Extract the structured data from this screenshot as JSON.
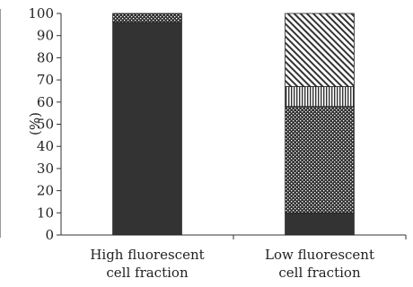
{
  "chart_data": {
    "type": "bar",
    "stacked": true,
    "categories": [
      [
        "High fluorescent",
        "cell fraction"
      ],
      [
        "Low fluorescent",
        "cell fraction"
      ]
    ],
    "series": [
      {
        "values": [
          96,
          10
        ],
        "color": "#333333",
        "pattern": "solid"
      },
      {
        "values": [
          4,
          48
        ],
        "color": "#333333",
        "pattern": "dots"
      },
      {
        "values": [
          0,
          9
        ],
        "color": "#333333",
        "pattern": "vertical-stripes"
      },
      {
        "values": [
          0,
          33
        ],
        "color": "#333333",
        "pattern": "diagonal-stripes"
      }
    ],
    "ylabel": "(%)",
    "xlabel": "",
    "ylim": [
      0,
      100
    ],
    "yticks": [
      0,
      10,
      20,
      30,
      40,
      50,
      60,
      70,
      80,
      90,
      100
    ],
    "grid": false,
    "legend": "none"
  }
}
